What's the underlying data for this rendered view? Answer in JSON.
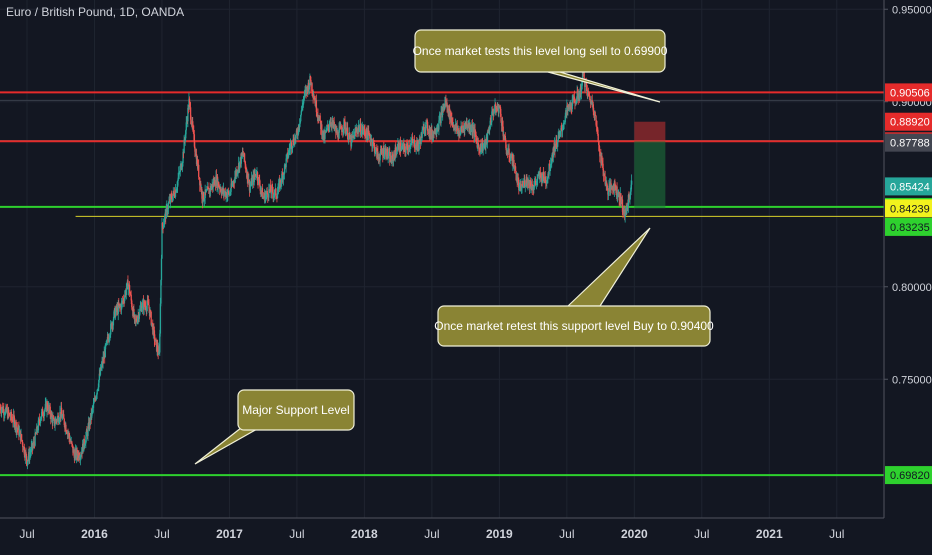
{
  "chart_data": {
    "type": "candlestick",
    "title": "Euro / British Pound, 1D, OANDA",
    "y_range": [
      0.675,
      0.955
    ],
    "x_range": [
      2015.3,
      2021.85
    ],
    "grid": true,
    "y_ticks": [
      {
        "value": 0.95,
        "label": "0.95000"
      },
      {
        "value": 0.9,
        "label": "0.90000"
      },
      {
        "value": 0.8,
        "label": "0.80000"
      },
      {
        "value": 0.75,
        "label": "0.75000"
      }
    ],
    "x_ticks": [
      {
        "value": 2015.5,
        "label": "Jul",
        "bold": false
      },
      {
        "value": 2016.0,
        "label": "2016",
        "bold": true
      },
      {
        "value": 2016.5,
        "label": "Jul",
        "bold": false
      },
      {
        "value": 2017.0,
        "label": "2017",
        "bold": true
      },
      {
        "value": 2017.5,
        "label": "Jul",
        "bold": false
      },
      {
        "value": 2018.0,
        "label": "2018",
        "bold": true
      },
      {
        "value": 2018.5,
        "label": "Jul",
        "bold": false
      },
      {
        "value": 2019.0,
        "label": "2019",
        "bold": true
      },
      {
        "value": 2019.5,
        "label": "Jul",
        "bold": false
      },
      {
        "value": 2020.0,
        "label": "2020",
        "bold": true
      },
      {
        "value": 2020.5,
        "label": "Jul",
        "bold": false
      },
      {
        "value": 2021.0,
        "label": "2021",
        "bold": true
      },
      {
        "value": 2021.5,
        "label": "Jul",
        "bold": false
      }
    ],
    "price_path": [
      [
        2015.3,
        0.735
      ],
      [
        2015.35,
        0.732
      ],
      [
        2015.4,
        0.728
      ],
      [
        2015.45,
        0.72
      ],
      [
        2015.5,
        0.706
      ],
      [
        2015.55,
        0.715
      ],
      [
        2015.6,
        0.73
      ],
      [
        2015.65,
        0.736
      ],
      [
        2015.7,
        0.726
      ],
      [
        2015.75,
        0.732
      ],
      [
        2015.8,
        0.722
      ],
      [
        2015.85,
        0.709
      ],
      [
        2015.9,
        0.71
      ],
      [
        2015.95,
        0.722
      ],
      [
        2016.0,
        0.738
      ],
      [
        2016.05,
        0.756
      ],
      [
        2016.1,
        0.772
      ],
      [
        2016.15,
        0.786
      ],
      [
        2016.2,
        0.79
      ],
      [
        2016.25,
        0.802
      ],
      [
        2016.3,
        0.78
      ],
      [
        2016.35,
        0.79
      ],
      [
        2016.4,
        0.79
      ],
      [
        2016.45,
        0.77
      ],
      [
        2016.48,
        0.763
      ],
      [
        2016.5,
        0.832
      ],
      [
        2016.55,
        0.845
      ],
      [
        2016.6,
        0.852
      ],
      [
        2016.65,
        0.868
      ],
      [
        2016.7,
        0.9
      ],
      [
        2016.75,
        0.872
      ],
      [
        2016.8,
        0.848
      ],
      [
        2016.85,
        0.852
      ],
      [
        2016.9,
        0.858
      ],
      [
        2016.95,
        0.851
      ],
      [
        2017.0,
        0.85
      ],
      [
        2017.05,
        0.862
      ],
      [
        2017.1,
        0.872
      ],
      [
        2017.15,
        0.854
      ],
      [
        2017.2,
        0.862
      ],
      [
        2017.25,
        0.848
      ],
      [
        2017.3,
        0.852
      ],
      [
        2017.35,
        0.85
      ],
      [
        2017.4,
        0.862
      ],
      [
        2017.45,
        0.876
      ],
      [
        2017.5,
        0.882
      ],
      [
        2017.55,
        0.902
      ],
      [
        2017.6,
        0.912
      ],
      [
        2017.65,
        0.895
      ],
      [
        2017.7,
        0.88
      ],
      [
        2017.75,
        0.89
      ],
      [
        2017.8,
        0.882
      ],
      [
        2017.85,
        0.888
      ],
      [
        2017.9,
        0.878
      ],
      [
        2017.95,
        0.886
      ],
      [
        2018.0,
        0.884
      ],
      [
        2018.05,
        0.88
      ],
      [
        2018.1,
        0.87
      ],
      [
        2018.15,
        0.874
      ],
      [
        2018.2,
        0.868
      ],
      [
        2018.25,
        0.876
      ],
      [
        2018.3,
        0.874
      ],
      [
        2018.35,
        0.878
      ],
      [
        2018.4,
        0.876
      ],
      [
        2018.45,
        0.888
      ],
      [
        2018.5,
        0.882
      ],
      [
        2018.55,
        0.888
      ],
      [
        2018.6,
        0.9
      ],
      [
        2018.65,
        0.889
      ],
      [
        2018.7,
        0.883
      ],
      [
        2018.75,
        0.888
      ],
      [
        2018.8,
        0.886
      ],
      [
        2018.85,
        0.875
      ],
      [
        2018.9,
        0.877
      ],
      [
        2018.95,
        0.895
      ],
      [
        2019.0,
        0.897
      ],
      [
        2019.05,
        0.874
      ],
      [
        2019.1,
        0.868
      ],
      [
        2019.15,
        0.852
      ],
      [
        2019.2,
        0.858
      ],
      [
        2019.25,
        0.854
      ],
      [
        2019.3,
        0.86
      ],
      [
        2019.35,
        0.858
      ],
      [
        2019.4,
        0.874
      ],
      [
        2019.45,
        0.882
      ],
      [
        2019.5,
        0.895
      ],
      [
        2019.55,
        0.9
      ],
      [
        2019.6,
        0.905
      ],
      [
        2019.62,
        0.915
      ],
      [
        2019.65,
        0.905
      ],
      [
        2019.7,
        0.897
      ],
      [
        2019.75,
        0.87
      ],
      [
        2019.8,
        0.852
      ],
      [
        2019.85,
        0.855
      ],
      [
        2019.9,
        0.847
      ],
      [
        2019.93,
        0.838
      ],
      [
        2019.96,
        0.848
      ],
      [
        2019.98,
        0.855
      ]
    ],
    "levels": [
      {
        "value": 0.90506,
        "label": "0.90506",
        "color": "#e52b2b",
        "badge_text_color": "#ffffff",
        "kind": "resistance",
        "full_width": true
      },
      {
        "value": 0.8892,
        "label": "0.88920",
        "color": "#e52b2b",
        "badge_text_color": "#ffffff",
        "kind": "stop",
        "full_width": false
      },
      {
        "value": 0.87863,
        "label": "0.87863",
        "color": "#e52b2b",
        "badge_text_color": "#ffffff",
        "kind": "resistance",
        "full_width": true
      },
      {
        "value": 0.87788,
        "label": "0.87788",
        "color": "#434651",
        "badge_text_color": "#ffffff",
        "kind": "marker",
        "full_width": false
      },
      {
        "value": 0.85424,
        "label": "0.85424",
        "color": "#26a69a",
        "badge_text_color": "#ffffff",
        "kind": "current",
        "full_width": false
      },
      {
        "value": 0.84315,
        "label": "0.84315",
        "color": "#2ed12e",
        "badge_text_color": "#ffffff",
        "kind": "support",
        "full_width": true
      },
      {
        "value": 0.84239,
        "label": "0.84239",
        "color": "#f2f21d",
        "badge_text_color": "#131722",
        "kind": "marker",
        "full_width": false
      },
      {
        "value": 0.83235,
        "label": "0.83235",
        "color": "#2ed12e",
        "badge_text_color": "#131722",
        "kind": "marker",
        "full_width": false
      },
      {
        "value": 0.6982,
        "label": "0.69820",
        "color": "#2ed12e",
        "badge_text_color": "#131722",
        "kind": "major-support",
        "full_width": true
      }
    ],
    "annotations": [
      {
        "text": "Once market tests this level long sell to 0.69900",
        "anchor_x": 2019.58,
        "anchor_y": 0.915
      },
      {
        "text": "Once market retest this support level Buy to 0.90400",
        "anchor_x": 2019.93,
        "anchor_y": 0.8405
      },
      {
        "text": "Major Support Level",
        "anchor_x": 2016.3,
        "anchor_y": 0.6985
      }
    ],
    "colors": {
      "up": "#26a69a",
      "down": "#ef5350",
      "background": "#131722",
      "grid": "#1f2430",
      "text": "#d1d4dc",
      "callout_fill": "#8a8434",
      "callout_border": "#f0f0d8"
    }
  }
}
